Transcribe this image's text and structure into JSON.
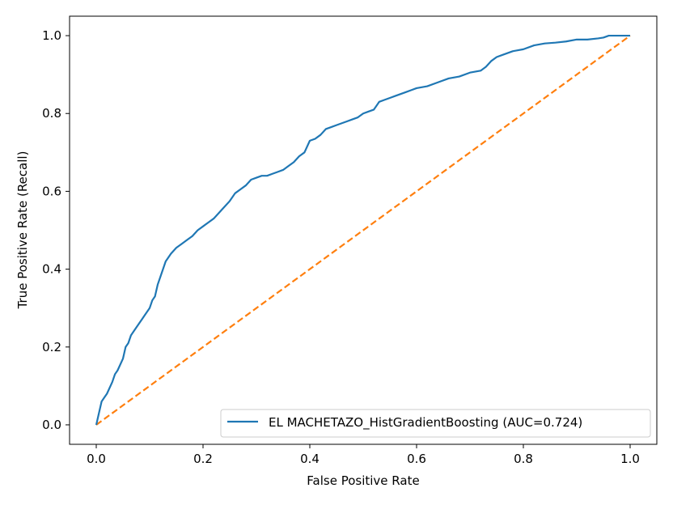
{
  "chart_data": {
    "type": "line",
    "title": "",
    "xlabel": "False Positive Rate",
    "ylabel": "True Positive Rate (Recall)",
    "xlim": [
      -0.05,
      1.05
    ],
    "ylim": [
      -0.05,
      1.05
    ],
    "xticks": [
      0.0,
      0.2,
      0.4,
      0.6,
      0.8,
      1.0
    ],
    "yticks": [
      0.0,
      0.2,
      0.4,
      0.6,
      0.8,
      1.0
    ],
    "tick_labels": [
      "0.0",
      "0.2",
      "0.4",
      "0.6",
      "0.8",
      "1.0"
    ],
    "grid": false,
    "legend_position": "lower-right",
    "series": [
      {
        "name": "EL MACHETAZO_HistGradientBoosting (AUC=0.724)",
        "color": "#1f77b4",
        "style": "solid",
        "x": [
          0.0,
          0.005,
          0.01,
          0.015,
          0.02,
          0.03,
          0.035,
          0.04,
          0.05,
          0.055,
          0.06,
          0.065,
          0.07,
          0.08,
          0.085,
          0.09,
          0.1,
          0.105,
          0.11,
          0.115,
          0.12,
          0.13,
          0.14,
          0.15,
          0.16,
          0.17,
          0.18,
          0.19,
          0.2,
          0.21,
          0.22,
          0.23,
          0.24,
          0.25,
          0.26,
          0.27,
          0.28,
          0.29,
          0.3,
          0.31,
          0.32,
          0.33,
          0.34,
          0.35,
          0.36,
          0.37,
          0.38,
          0.39,
          0.4,
          0.41,
          0.42,
          0.43,
          0.44,
          0.45,
          0.46,
          0.47,
          0.48,
          0.49,
          0.5,
          0.51,
          0.52,
          0.53,
          0.54,
          0.55,
          0.56,
          0.57,
          0.58,
          0.59,
          0.6,
          0.62,
          0.64,
          0.66,
          0.68,
          0.7,
          0.72,
          0.73,
          0.74,
          0.75,
          0.76,
          0.78,
          0.8,
          0.82,
          0.84,
          0.86,
          0.88,
          0.9,
          0.92,
          0.94,
          0.95,
          0.96,
          0.98,
          1.0
        ],
        "y": [
          0.0,
          0.03,
          0.06,
          0.07,
          0.08,
          0.11,
          0.13,
          0.14,
          0.17,
          0.2,
          0.21,
          0.23,
          0.24,
          0.26,
          0.27,
          0.28,
          0.3,
          0.32,
          0.33,
          0.36,
          0.38,
          0.42,
          0.44,
          0.455,
          0.465,
          0.475,
          0.485,
          0.5,
          0.51,
          0.52,
          0.53,
          0.545,
          0.56,
          0.575,
          0.595,
          0.605,
          0.615,
          0.63,
          0.635,
          0.64,
          0.64,
          0.645,
          0.65,
          0.655,
          0.665,
          0.675,
          0.69,
          0.7,
          0.73,
          0.735,
          0.745,
          0.76,
          0.765,
          0.77,
          0.775,
          0.78,
          0.785,
          0.79,
          0.8,
          0.805,
          0.81,
          0.83,
          0.835,
          0.84,
          0.845,
          0.85,
          0.855,
          0.86,
          0.865,
          0.87,
          0.88,
          0.89,
          0.895,
          0.905,
          0.91,
          0.92,
          0.935,
          0.945,
          0.95,
          0.96,
          0.965,
          0.975,
          0.98,
          0.982,
          0.985,
          0.99,
          0.99,
          0.993,
          0.995,
          1.0,
          1.0,
          1.0
        ]
      },
      {
        "name": "",
        "color": "#ff7f0e",
        "style": "dashed",
        "x": [
          0.0,
          1.0
        ],
        "y": [
          0.0,
          1.0
        ]
      }
    ]
  }
}
